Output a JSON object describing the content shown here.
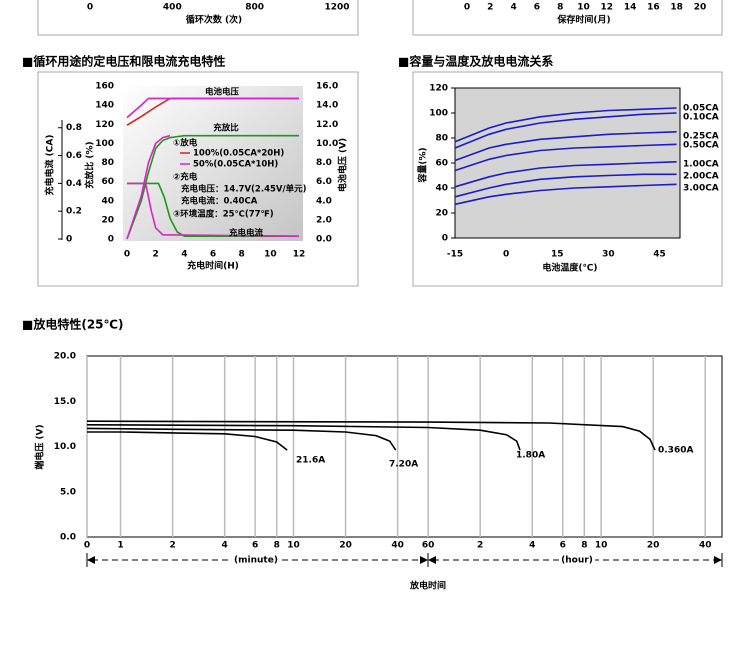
{
  "chart_data": [
    {
      "type": "line",
      "x_label": "循环次数 (次)",
      "xlim": [
        0,
        1200
      ],
      "xticks": [
        0,
        400,
        800,
        1200
      ]
    },
    {
      "type": "line",
      "x_label": "保存时间(月)",
      "xlim": [
        0,
        20
      ],
      "xticks": [
        0,
        2,
        4,
        6,
        8,
        10,
        12,
        14,
        16,
        18,
        20
      ]
    },
    {
      "type": "line",
      "title": "■循环用途的定电压和限电流充电特性",
      "x_label": "充电时间(H)",
      "xlim": [
        0,
        12
      ],
      "xticks": [
        0,
        2,
        4,
        6,
        8,
        10,
        12
      ],
      "y_label": "充放比 (%)",
      "ylim": [
        0,
        160
      ],
      "yticks": [
        0,
        20,
        40,
        60,
        80,
        100,
        120,
        140,
        160
      ],
      "y2_label": "电池电压 (V)",
      "y2lim": [
        0,
        16
      ],
      "y2ticks": [
        {
          "value": 0,
          "label": "0.0"
        },
        {
          "value": 2,
          "label": "2.0"
        },
        {
          "value": 4,
          "label": "4.0"
        },
        {
          "value": 6,
          "label": "6.0"
        },
        {
          "value": 8,
          "label": "8.0"
        },
        {
          "value": 10,
          "label": "10.0"
        },
        {
          "value": 12,
          "label": "12.0"
        },
        {
          "value": 14,
          "label": "14.0"
        },
        {
          "value": 16,
          "label": "16.0"
        }
      ],
      "y3_label": "充电电流 (CA)",
      "y3lim": [
        0,
        1.1
      ],
      "y3ticks": [
        0,
        0.2,
        0.4,
        0.6,
        0.8
      ],
      "series": [
        {
          "color": "#e02020",
          "axis": "y2",
          "x": [
            0,
            1,
            2,
            3,
            12
          ],
          "values": [
            11.9,
            12.8,
            13.8,
            14.7,
            14.7
          ]
        },
        {
          "color": "#e020c8",
          "axis": "y2",
          "x": [
            0,
            1,
            1.5,
            12
          ],
          "values": [
            12.7,
            14.0,
            14.7,
            14.7
          ]
        },
        {
          "color": "#1a9a1a",
          "axis": "y",
          "x": [
            0,
            1,
            1.5,
            2,
            2.5,
            3,
            4,
            12
          ],
          "values": [
            0,
            40,
            70,
            95,
            103,
            106,
            108,
            108
          ]
        },
        {
          "color": "#e020c8",
          "axis": "y",
          "x": [
            0,
            1,
            1.5,
            2,
            2.5,
            3
          ],
          "values": [
            0,
            45,
            80,
            100,
            106,
            108
          ]
        },
        {
          "color": "#1a9a1a",
          "axis": "y3",
          "x": [
            0,
            2.2,
            2.6,
            3,
            3.5,
            4,
            12
          ],
          "values": [
            0.4,
            0.4,
            0.3,
            0.15,
            0.05,
            0.02,
            0.02
          ]
        },
        {
          "color": "#e020c8",
          "axis": "y3",
          "x": [
            0,
            1.3,
            1.7,
            2,
            2.5,
            12
          ],
          "values": [
            0.4,
            0.4,
            0.2,
            0.08,
            0.03,
            0.02
          ]
        }
      ],
      "annotations": [
        "电池电压",
        "充放比",
        "①放电",
        "100%(0.05CA*20H)",
        "50%(0.05CA*10H)",
        "②充电",
        "充电电压：14.7V(2.45V/单元)",
        "充电电流：0.40CA",
        "③环境温度：25℃(77℉)",
        "充电电流"
      ]
    },
    {
      "type": "line",
      "title": "■容量与温度及放电电流关系",
      "x_label": "电池温度(℃)",
      "y_label": "容量(%)",
      "xlim": [
        -15,
        51
      ],
      "xticks": [
        -15,
        0,
        15,
        30,
        45
      ],
      "ylim": [
        0,
        120
      ],
      "yticks": [
        0,
        20,
        40,
        60,
        80,
        100,
        120
      ],
      "x": [
        -15,
        -5,
        0,
        10,
        20,
        30,
        40,
        50
      ],
      "series": [
        {
          "name": "0.05CA",
          "color": "#1a1ad0",
          "values": [
            77,
            88,
            92,
            97,
            100,
            102,
            103,
            104
          ]
        },
        {
          "name": "0.10CA",
          "color": "#1a1ad0",
          "values": [
            72,
            83,
            87,
            92,
            95,
            97,
            99,
            100
          ]
        },
        {
          "name": "0.25CA",
          "color": "#1a1ad0",
          "values": [
            62,
            72,
            75,
            79,
            81,
            83,
            84,
            85
          ]
        },
        {
          "name": "0.50CA",
          "color": "#1a1ad0",
          "values": [
            54,
            63,
            66,
            70,
            72,
            73,
            74,
            75
          ]
        },
        {
          "name": "1.00CA",
          "color": "#1a1ad0",
          "values": [
            41,
            49,
            52,
            56,
            58,
            59,
            60,
            61
          ]
        },
        {
          "name": "2.00CA",
          "color": "#1a1ad0",
          "values": [
            33,
            40,
            43,
            47,
            49,
            50,
            51,
            51
          ]
        },
        {
          "name": "3.00CA",
          "color": "#1a1ad0",
          "values": [
            27,
            33,
            35,
            38,
            40,
            41,
            42,
            43
          ]
        }
      ]
    },
    {
      "type": "line",
      "title": "■放电特性(25℃)",
      "y_label": "端电压 (V)",
      "x_label": "放电时间",
      "x_unit_labels": [
        "(minute)",
        "(hour)"
      ],
      "log_x": true,
      "grid": true,
      "xlim": [
        0.64,
        3000
      ],
      "xticks": [
        {
          "value": 0.64,
          "label": "0"
        },
        1,
        2,
        4,
        6,
        8,
        10,
        20,
        40,
        60,
        {
          "value": 120,
          "label": "2"
        },
        {
          "value": 240,
          "label": "4"
        },
        {
          "value": 360,
          "label": "6"
        },
        {
          "value": 480,
          "label": "8"
        },
        {
          "value": 600,
          "label": "10"
        },
        {
          "value": 1200,
          "label": "20"
        },
        {
          "value": 2400,
          "label": "40"
        }
      ],
      "ylim": [
        0,
        20
      ],
      "yticks": [
        {
          "value": 0,
          "label": "0.0"
        },
        {
          "value": 5,
          "label": "5.0"
        },
        {
          "value": 10,
          "label": "10.0"
        },
        {
          "value": 15,
          "label": "15.0"
        },
        {
          "value": 20,
          "label": "20.0"
        }
      ],
      "series": [
        {
          "name": "21.6A",
          "color": "#000000",
          "x": [
            0.64,
            1,
            2,
            4,
            6,
            8,
            9.2
          ],
          "values": [
            11.6,
            11.6,
            11.5,
            11.4,
            11.1,
            10.5,
            9.6
          ]
        },
        {
          "name": "7.20A",
          "color": "#000000",
          "x": [
            0.64,
            2,
            10,
            20,
            30,
            36,
            39
          ],
          "values": [
            12.0,
            11.9,
            11.8,
            11.6,
            11.2,
            10.6,
            9.6
          ]
        },
        {
          "name": "1.80A",
          "color": "#000000",
          "x": [
            0.64,
            10,
            60,
            120,
            170,
            195,
            204
          ],
          "values": [
            12.4,
            12.3,
            12.1,
            11.8,
            11.3,
            10.6,
            9.6
          ]
        },
        {
          "name": "0.360A",
          "color": "#000000",
          "x": [
            0.64,
            60,
            300,
            800,
            1000,
            1150,
            1230
          ],
          "values": [
            12.8,
            12.7,
            12.6,
            12.2,
            11.7,
            10.8,
            9.6
          ]
        }
      ]
    }
  ]
}
